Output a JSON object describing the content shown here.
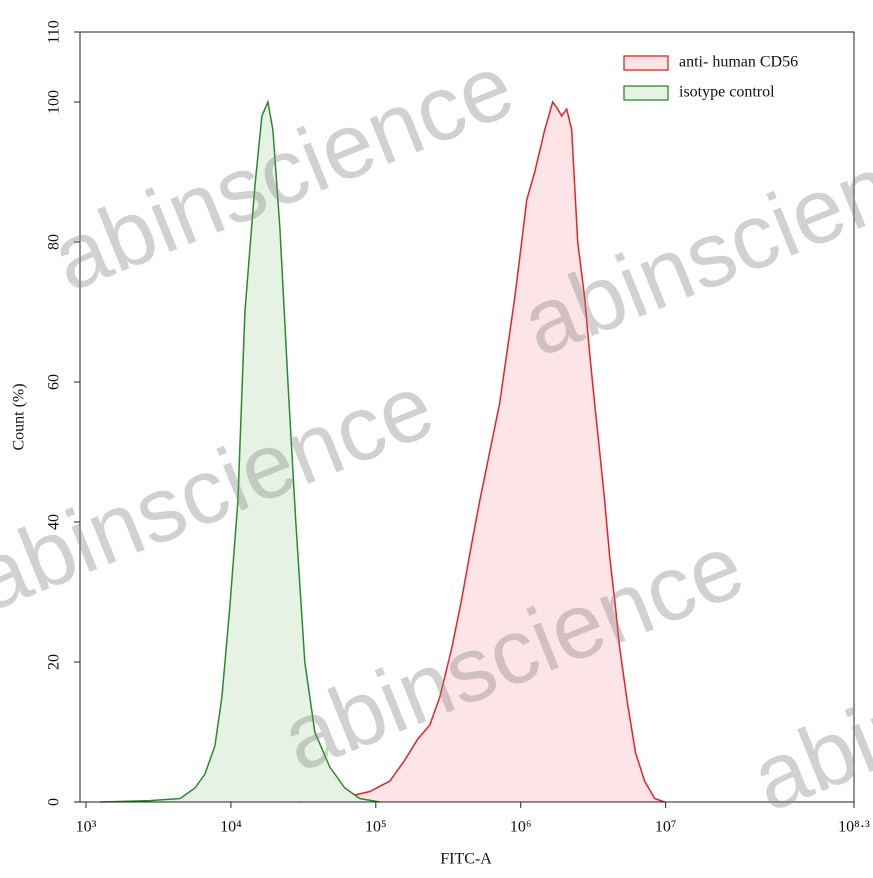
{
  "chart_data": {
    "type": "area",
    "xlabel": "FITC-A",
    "ylabel": "Count (%)",
    "xscale": "log",
    "xlim": [
      1000,
      199526231
    ],
    "xticks": [
      {
        "value": 1000,
        "label": "10³"
      },
      {
        "value": 10000,
        "label": "10⁴"
      },
      {
        "value": 100000,
        "label": "10⁵"
      },
      {
        "value": 1000000,
        "label": "10⁶"
      },
      {
        "value": 10000000,
        "label": "10⁷"
      },
      {
        "value": 199526231,
        "label": "10⁸·³"
      }
    ],
    "ylim": [
      0,
      110
    ],
    "yticks": [
      0,
      20,
      40,
      60,
      80,
      100,
      110
    ],
    "legend": "upper right",
    "watermark": "abinscience",
    "series": [
      {
        "name": "anti- human CD56",
        "color": "#e3242b",
        "fill": "#fde4e6",
        "x": [
          29920,
          56490,
          90940,
          125000,
          158600,
          195000,
          235700,
          276300,
          334300,
          391800,
          459300,
          521400,
          611100,
          716300,
          813000,
          909400,
          1016000,
          1100000,
          1249000,
          1465000,
          1663000,
          1799000,
          1918000,
          2075000,
          2248000,
          2473000,
          2762000,
          2991000,
          3237000,
          3509000,
          3796000,
          4111000,
          4446000,
          4822000,
          5468000,
          6209000,
          7161000,
          8395000,
          9840000
        ],
        "values": [
          0,
          0.5,
          1.5,
          3,
          6,
          9,
          11,
          15,
          22,
          29,
          37,
          43,
          50,
          57,
          65,
          72,
          80,
          86,
          90,
          96,
          100,
          99,
          98,
          99,
          96,
          80,
          72,
          64,
          57,
          50,
          43,
          35,
          29,
          22,
          14,
          7,
          3,
          0.5,
          0
        ]
      },
      {
        "name": "isotype control",
        "color": "#2b8a2b",
        "fill": "#e6f2e3",
        "x": [
          1250,
          2760,
          4450,
          5650,
          6620,
          7760,
          8670,
          9840,
          11170,
          12500,
          14650,
          16370,
          17990,
          19490,
          21770,
          24720,
          28060,
          32370,
          37930,
          48170,
          61090,
          77580,
          106600
        ],
        "values": [
          0,
          0.2,
          0.5,
          2,
          4,
          8,
          15,
          28,
          43,
          70,
          88,
          98,
          100,
          96,
          82,
          60,
          40,
          20,
          10,
          5,
          2,
          0.5,
          0
        ]
      }
    ]
  }
}
